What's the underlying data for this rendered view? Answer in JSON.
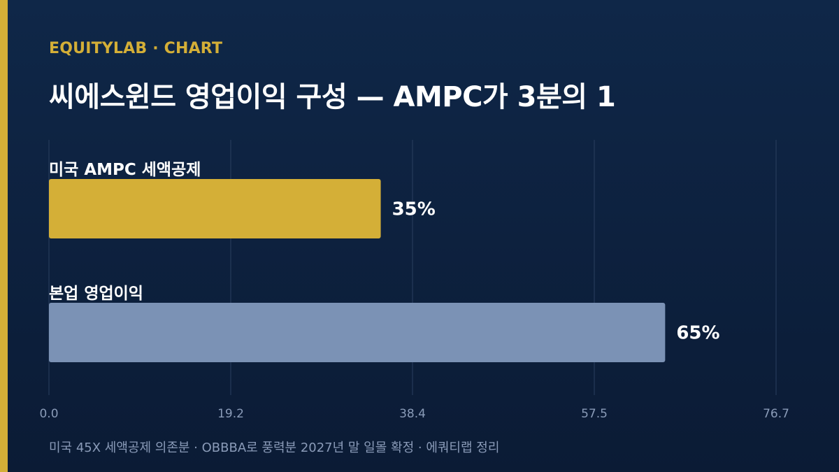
{
  "header": {
    "brand": "EQUITYLAB · CHART",
    "title": "씨에스윈드 영업이익 구성 — AMPC가 3분의 1"
  },
  "colors": {
    "background": "#0f2748",
    "accent": "#d4af37",
    "bar_ampc": "#d4af37",
    "bar_core": "#7b92b5",
    "text": "#ffffff",
    "muted": "#8a9bb8",
    "grid": "#2a3f5f"
  },
  "chart_data": {
    "type": "bar",
    "orientation": "horizontal",
    "categories": [
      "미국 AMPC 세액공제",
      "본업 영업이익"
    ],
    "values": [
      35,
      65
    ],
    "value_labels": [
      "35%",
      "65%"
    ],
    "colors": [
      "#d4af37",
      "#7b92b5"
    ],
    "xlim": [
      0,
      76.7
    ],
    "xticks": [
      "0.0",
      "19.2",
      "38.4",
      "57.5",
      "76.7"
    ],
    "grid": true,
    "legend": "none"
  },
  "footer": {
    "note": "미국 45X 세액공제 의존분 · OBBBA로 풍력분 2027년 말 일몰 확정 · 에쿼티랩 정리"
  }
}
